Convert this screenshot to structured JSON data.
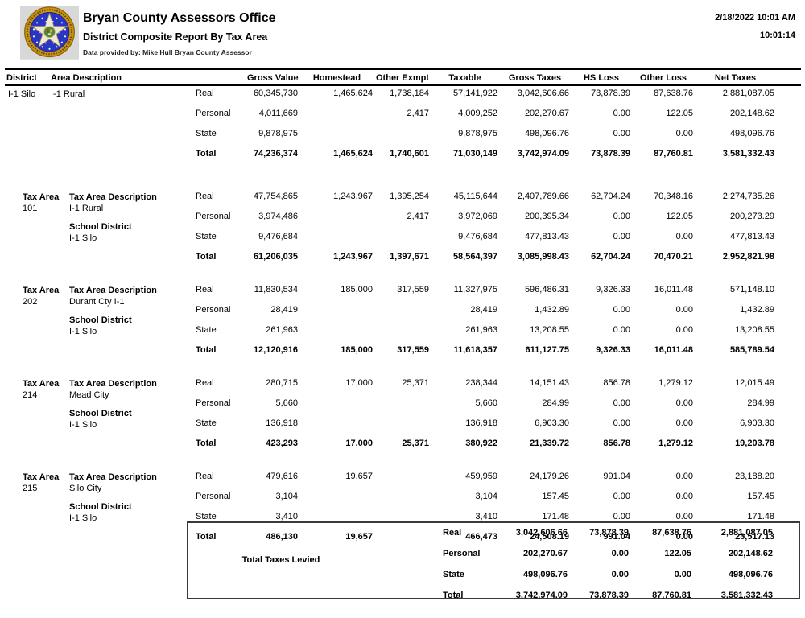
{
  "header": {
    "title": "Bryan County Assessors Office",
    "subtitle": "District Composite Report By Tax Area",
    "provider": "Data provided by: Mike Hull Bryan County Assessor",
    "datetime": "2/18/2022 10:01 AM",
    "time": "10:01:14",
    "logo": "oklahoma-state-seal",
    "logo_colors": {
      "ring": "#c9920f",
      "field": "#2a35c4",
      "star": "#efe8d2",
      "center": "#4a8a3a",
      "background": "#d8d8d8"
    }
  },
  "table": {
    "columns": [
      "District",
      "Area Description",
      "Gross Value",
      "Homestead",
      "Other Exmpt",
      "Taxable",
      "Gross Taxes",
      "HS Loss",
      "Other Loss",
      "Net Taxes"
    ]
  },
  "sections": [
    {
      "type": "district",
      "district": "I-1 Silo",
      "area_description": "I-1 Rural",
      "rows": [
        {
          "label": "Real",
          "gross_value": "60,345,730",
          "homestead": "1,465,624",
          "other_exmpt": "1,738,184",
          "taxable": "57,141,922",
          "gross_taxes": "3,042,606.66",
          "hs_loss": "73,878.39",
          "other_loss": "87,638.76",
          "net_taxes": "2,881,087.05"
        },
        {
          "label": "Personal",
          "gross_value": "4,011,669",
          "homestead": "",
          "other_exmpt": "2,417",
          "taxable": "4,009,252",
          "gross_taxes": "202,270.67",
          "hs_loss": "0.00",
          "other_loss": "122.05",
          "net_taxes": "202,148.62"
        },
        {
          "label": "State",
          "gross_value": "9,878,975",
          "homestead": "",
          "other_exmpt": "",
          "taxable": "9,878,975",
          "gross_taxes": "498,096.76",
          "hs_loss": "0.00",
          "other_loss": "0.00",
          "net_taxes": "498,096.76"
        },
        {
          "label": "Total",
          "bold": true,
          "gross_value": "74,236,374",
          "homestead": "1,465,624",
          "other_exmpt": "1,740,601",
          "taxable": "71,030,149",
          "gross_taxes": "3,742,974.09",
          "hs_loss": "73,878.39",
          "other_loss": "87,760.81",
          "net_taxes": "3,581,332.43"
        }
      ]
    },
    {
      "type": "tax_area",
      "tax_area_header": "Tax Area",
      "tax_area": "101",
      "desc_header": "Tax Area Description",
      "description": "I-1 Rural",
      "school_header": "School District",
      "school": "I-1 Silo",
      "rows": [
        {
          "label": "Real",
          "gross_value": "47,754,865",
          "homestead": "1,243,967",
          "other_exmpt": "1,395,254",
          "taxable": "45,115,644",
          "gross_taxes": "2,407,789.66",
          "hs_loss": "62,704.24",
          "other_loss": "70,348.16",
          "net_taxes": "2,274,735.26"
        },
        {
          "label": "Personal",
          "gross_value": "3,974,486",
          "homestead": "",
          "other_exmpt": "2,417",
          "taxable": "3,972,069",
          "gross_taxes": "200,395.34",
          "hs_loss": "0.00",
          "other_loss": "122.05",
          "net_taxes": "200,273.29"
        },
        {
          "label": "State",
          "gross_value": "9,476,684",
          "homestead": "",
          "other_exmpt": "",
          "taxable": "9,476,684",
          "gross_taxes": "477,813.43",
          "hs_loss": "0.00",
          "other_loss": "0.00",
          "net_taxes": "477,813.43"
        },
        {
          "label": "Total",
          "bold": true,
          "gross_value": "61,206,035",
          "homestead": "1,243,967",
          "other_exmpt": "1,397,671",
          "taxable": "58,564,397",
          "gross_taxes": "3,085,998.43",
          "hs_loss": "62,704.24",
          "other_loss": "70,470.21",
          "net_taxes": "2,952,821.98"
        }
      ]
    },
    {
      "type": "tax_area",
      "tax_area_header": "Tax Area",
      "tax_area": "202",
      "desc_header": "Tax Area Description",
      "description": "Durant Cty I-1",
      "school_header": "School District",
      "school": "I-1 Silo",
      "rows": [
        {
          "label": "Real",
          "gross_value": "11,830,534",
          "homestead": "185,000",
          "other_exmpt": "317,559",
          "taxable": "11,327,975",
          "gross_taxes": "596,486.31",
          "hs_loss": "9,326.33",
          "other_loss": "16,011.48",
          "net_taxes": "571,148.10"
        },
        {
          "label": "Personal",
          "gross_value": "28,419",
          "homestead": "",
          "other_exmpt": "",
          "taxable": "28,419",
          "gross_taxes": "1,432.89",
          "hs_loss": "0.00",
          "other_loss": "0.00",
          "net_taxes": "1,432.89"
        },
        {
          "label": "State",
          "gross_value": "261,963",
          "homestead": "",
          "other_exmpt": "",
          "taxable": "261,963",
          "gross_taxes": "13,208.55",
          "hs_loss": "0.00",
          "other_loss": "0.00",
          "net_taxes": "13,208.55"
        },
        {
          "label": "Total",
          "bold": true,
          "gross_value": "12,120,916",
          "homestead": "185,000",
          "other_exmpt": "317,559",
          "taxable": "11,618,357",
          "gross_taxes": "611,127.75",
          "hs_loss": "9,326.33",
          "other_loss": "16,011.48",
          "net_taxes": "585,789.54"
        }
      ]
    },
    {
      "type": "tax_area",
      "tax_area_header": "Tax Area",
      "tax_area": "214",
      "desc_header": "Tax Area Description",
      "description": "Mead City",
      "school_header": "School District",
      "school": "I-1 Silo",
      "rows": [
        {
          "label": "Real",
          "gross_value": "280,715",
          "homestead": "17,000",
          "other_exmpt": "25,371",
          "taxable": "238,344",
          "gross_taxes": "14,151.43",
          "hs_loss": "856.78",
          "other_loss": "1,279.12",
          "net_taxes": "12,015.49"
        },
        {
          "label": "Personal",
          "gross_value": "5,660",
          "homestead": "",
          "other_exmpt": "",
          "taxable": "5,660",
          "gross_taxes": "284.99",
          "hs_loss": "0.00",
          "other_loss": "0.00",
          "net_taxes": "284.99"
        },
        {
          "label": "State",
          "gross_value": "136,918",
          "homestead": "",
          "other_exmpt": "",
          "taxable": "136,918",
          "gross_taxes": "6,903.30",
          "hs_loss": "0.00",
          "other_loss": "0.00",
          "net_taxes": "6,903.30"
        },
        {
          "label": "Total",
          "bold": true,
          "gross_value": "423,293",
          "homestead": "17,000",
          "other_exmpt": "25,371",
          "taxable": "380,922",
          "gross_taxes": "21,339.72",
          "hs_loss": "856.78",
          "other_loss": "1,279.12",
          "net_taxes": "19,203.78"
        }
      ]
    },
    {
      "type": "tax_area",
      "tax_area_header": "Tax Area",
      "tax_area": "215",
      "desc_header": "Tax Area Description",
      "description": "Silo City",
      "school_header": "School District",
      "school": "I-1 Silo",
      "rows": [
        {
          "label": "Real",
          "gross_value": "479,616",
          "homestead": "19,657",
          "other_exmpt": "",
          "taxable": "459,959",
          "gross_taxes": "24,179.26",
          "hs_loss": "991.04",
          "other_loss": "0.00",
          "net_taxes": "23,188.20"
        },
        {
          "label": "Personal",
          "gross_value": "3,104",
          "homestead": "",
          "other_exmpt": "",
          "taxable": "3,104",
          "gross_taxes": "157.45",
          "hs_loss": "0.00",
          "other_loss": "0.00",
          "net_taxes": "157.45"
        },
        {
          "label": "State",
          "gross_value": "3,410",
          "homestead": "",
          "other_exmpt": "",
          "taxable": "3,410",
          "gross_taxes": "171.48",
          "hs_loss": "0.00",
          "other_loss": "0.00",
          "net_taxes": "171.48"
        },
        {
          "label": "Total",
          "bold": true,
          "gross_value": "486,130",
          "homestead": "19,657",
          "other_exmpt": "",
          "taxable": "466,473",
          "gross_taxes": "24,508.19",
          "hs_loss": "991.04",
          "other_loss": "0.00",
          "net_taxes": "23,517.13"
        }
      ]
    }
  ],
  "totals_box": {
    "title": "Total Taxes Levied",
    "rows": [
      {
        "label": "Real",
        "gross_taxes": "3,042,606.66",
        "hs_loss": "73,878.39",
        "other_loss": "87,638.76",
        "net_taxes": "2,881,087.05"
      },
      {
        "label": "Personal",
        "gross_taxes": "202,270.67",
        "hs_loss": "0.00",
        "other_loss": "122.05",
        "net_taxes": "202,148.62"
      },
      {
        "label": "State",
        "gross_taxes": "498,096.76",
        "hs_loss": "0.00",
        "other_loss": "0.00",
        "net_taxes": "498,096.76"
      },
      {
        "label": "Total",
        "gross_taxes": "3,742,974.09",
        "hs_loss": "73,878.39",
        "other_loss": "87,760.81",
        "net_taxes": "3,581,332.43"
      }
    ]
  }
}
